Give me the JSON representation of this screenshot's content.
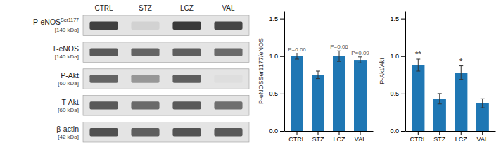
{
  "chart_data": [
    {
      "type": "blot",
      "categories": [
        "CTRL",
        "STZ",
        "LCZ",
        "VAL"
      ],
      "rows": [
        "P-eNOS",
        "T-eNOS",
        "P-Akt",
        "T-Akt",
        "β-actin"
      ],
      "row_superscripts": [
        "Ser1177",
        null,
        null,
        null,
        null
      ],
      "row_sublabels": [
        "[140 kDa]",
        "[140 kDa]",
        "[60 kDa]",
        "[60 kDa]",
        "[42 kDa]"
      ],
      "cells": [
        [
          0.8,
          0.28,
          0.82,
          0.78
        ],
        [
          0.72,
          0.68,
          0.7,
          0.66
        ],
        [
          0.68,
          0.5,
          0.7,
          0.22
        ],
        [
          0.72,
          0.66,
          0.72,
          0.64
        ],
        [
          0.75,
          0.7,
          0.74,
          0.72
        ]
      ]
    },
    {
      "type": "bar",
      "categories": [
        "CTRL",
        "STZ",
        "LCZ",
        "VAL"
      ],
      "values": [
        1.0,
        0.75,
        1.0,
        0.95
      ],
      "errors": [
        0.04,
        0.05,
        0.07,
        0.04
      ],
      "ylabel": "P-eNOSSer1177/eNOS",
      "annotations": [
        {
          "text": "P=0.06",
          "bar": 0
        },
        {
          "text": "P=0.06",
          "bar": 2
        },
        {
          "text": "P=0.09",
          "bar": 3
        }
      ],
      "ylim": [
        0,
        1.6
      ],
      "yticks": [
        {
          "value": 0,
          "label": "0.0"
        },
        0.5,
        {
          "value": 1,
          "label": "1.0"
        },
        1.5
      ],
      "grid": false
    },
    {
      "type": "bar",
      "categories": [
        "CTRL",
        "STZ",
        "LCZ",
        "VAL"
      ],
      "values": [
        0.88,
        0.43,
        0.78,
        0.37
      ],
      "errors": [
        0.08,
        0.07,
        0.09,
        0.06
      ],
      "ylabel": "P-Akt/Akt",
      "annotations": [
        {
          "text": "**",
          "bar": 0
        },
        {
          "text": "*",
          "bar": 2
        }
      ],
      "ylim": [
        0,
        1.6
      ],
      "yticks": [
        {
          "value": 0,
          "label": "0.0"
        },
        0.5,
        {
          "value": 1,
          "label": "1.0"
        },
        1.5
      ],
      "grid": false
    }
  ]
}
